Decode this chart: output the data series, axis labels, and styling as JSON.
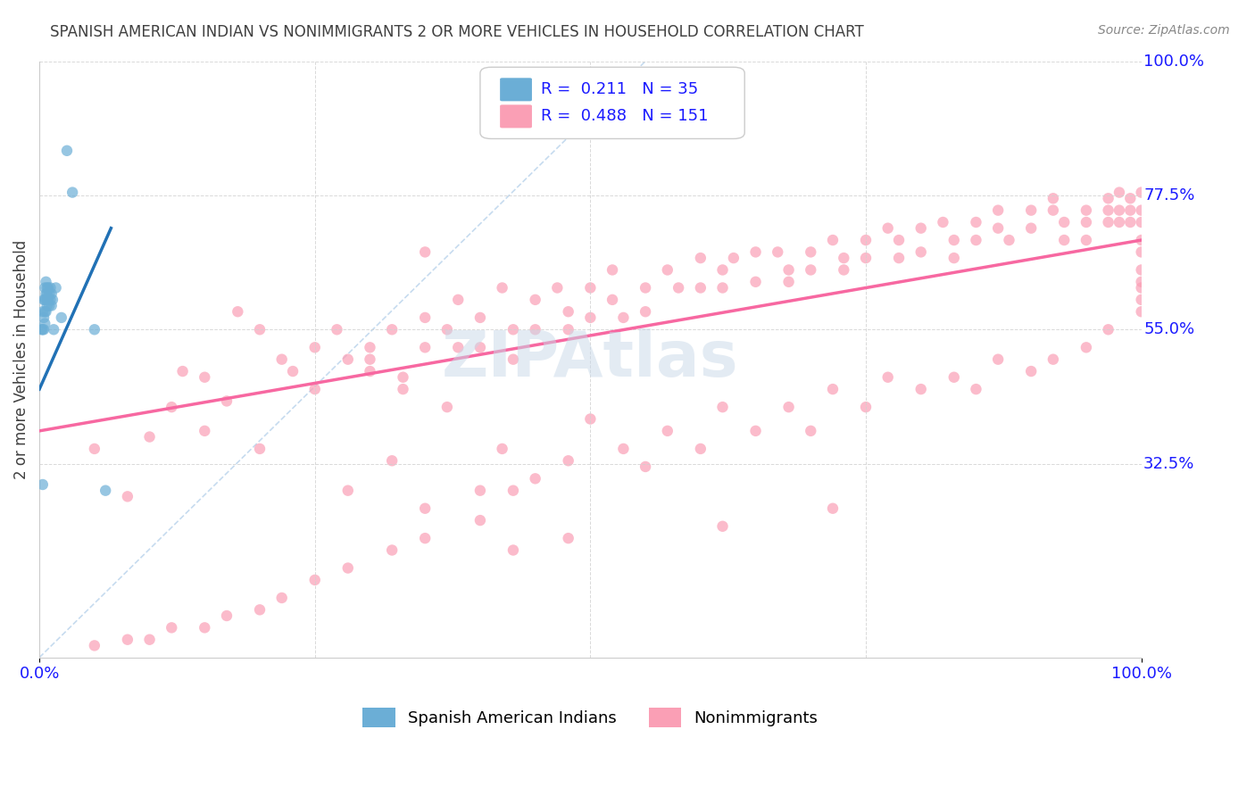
{
  "title": "SPANISH AMERICAN INDIAN VS NONIMMIGRANTS 2 OR MORE VEHICLES IN HOUSEHOLD CORRELATION CHART",
  "source": "Source: ZipAtlas.com",
  "ylabel": "2 or more Vehicles in Household",
  "xlabel": "",
  "xlim": [
    0.0,
    1.0
  ],
  "ylim": [
    0.0,
    1.0
  ],
  "xtick_labels": [
    "0.0%",
    "100.0%"
  ],
  "xtick_positions": [
    0.0,
    1.0
  ],
  "ytick_labels": [
    "100.0%",
    "77.5%",
    "55.0%",
    "32.5%"
  ],
  "ytick_positions": [
    1.0,
    0.775,
    0.55,
    0.325
  ],
  "R_blue": 0.211,
  "N_blue": 35,
  "R_pink": 0.488,
  "N_pink": 151,
  "legend_label_blue": "Spanish American Indians",
  "legend_label_pink": "Nonimmigrants",
  "color_blue": "#6baed6",
  "color_pink": "#fa9fb5",
  "color_blue_line": "#2171b5",
  "color_pink_line": "#f768a1",
  "color_diag": "#c6dbef",
  "scatter_blue_x": [
    0.003,
    0.003,
    0.004,
    0.004,
    0.004,
    0.005,
    0.005,
    0.005,
    0.005,
    0.006,
    0.006,
    0.006,
    0.006,
    0.007,
    0.007,
    0.007,
    0.007,
    0.008,
    0.008,
    0.009,
    0.009,
    0.01,
    0.01,
    0.011,
    0.011,
    0.012,
    0.013,
    0.015,
    0.02,
    0.025,
    0.03,
    0.05,
    0.06,
    0.003,
    0.002
  ],
  "scatter_blue_y": [
    0.55,
    0.58,
    0.6,
    0.57,
    0.55,
    0.62,
    0.6,
    0.58,
    0.56,
    0.63,
    0.61,
    0.6,
    0.58,
    0.62,
    0.61,
    0.6,
    0.59,
    0.62,
    0.6,
    0.61,
    0.59,
    0.62,
    0.6,
    0.61,
    0.59,
    0.6,
    0.55,
    0.62,
    0.57,
    0.85,
    0.78,
    0.55,
    0.28,
    0.29,
    0.55
  ],
  "scatter_pink_x": [
    0.05,
    0.08,
    0.1,
    0.12,
    0.13,
    0.15,
    0.17,
    0.18,
    0.2,
    0.22,
    0.23,
    0.25,
    0.25,
    0.27,
    0.28,
    0.3,
    0.3,
    0.32,
    0.33,
    0.35,
    0.35,
    0.37,
    0.38,
    0.38,
    0.4,
    0.4,
    0.42,
    0.43,
    0.43,
    0.45,
    0.45,
    0.47,
    0.48,
    0.48,
    0.5,
    0.5,
    0.52,
    0.52,
    0.53,
    0.55,
    0.55,
    0.57,
    0.58,
    0.6,
    0.6,
    0.62,
    0.62,
    0.63,
    0.65,
    0.65,
    0.67,
    0.68,
    0.68,
    0.7,
    0.7,
    0.72,
    0.73,
    0.73,
    0.75,
    0.75,
    0.77,
    0.78,
    0.78,
    0.8,
    0.8,
    0.82,
    0.83,
    0.83,
    0.85,
    0.85,
    0.87,
    0.87,
    0.88,
    0.9,
    0.9,
    0.92,
    0.92,
    0.93,
    0.93,
    0.95,
    0.95,
    0.95,
    0.97,
    0.97,
    0.97,
    0.98,
    0.98,
    0.98,
    0.99,
    0.99,
    0.99,
    1.0,
    1.0,
    1.0,
    1.0,
    1.0,
    1.0,
    1.0,
    1.0,
    1.0,
    0.15,
    0.2,
    0.28,
    0.32,
    0.35,
    0.37,
    0.4,
    0.42,
    0.45,
    0.5,
    0.53,
    0.55,
    0.57,
    0.6,
    0.62,
    0.65,
    0.68,
    0.7,
    0.72,
    0.75,
    0.77,
    0.8,
    0.83,
    0.85,
    0.87,
    0.9,
    0.92,
    0.95,
    0.97,
    1.0,
    0.72,
    0.62,
    0.48,
    0.43,
    0.48,
    0.43,
    0.4,
    0.35,
    0.32,
    0.28,
    0.25,
    0.22,
    0.2,
    0.17,
    0.15,
    0.12,
    0.1,
    0.08,
    0.05,
    0.3,
    0.33,
    0.35
  ],
  "scatter_pink_y": [
    0.35,
    0.27,
    0.37,
    0.42,
    0.48,
    0.47,
    0.43,
    0.58,
    0.55,
    0.5,
    0.48,
    0.52,
    0.45,
    0.55,
    0.5,
    0.48,
    0.52,
    0.55,
    0.47,
    0.57,
    0.52,
    0.55,
    0.6,
    0.52,
    0.57,
    0.52,
    0.62,
    0.55,
    0.5,
    0.6,
    0.55,
    0.62,
    0.58,
    0.55,
    0.62,
    0.57,
    0.65,
    0.6,
    0.57,
    0.62,
    0.58,
    0.65,
    0.62,
    0.67,
    0.62,
    0.65,
    0.62,
    0.67,
    0.68,
    0.63,
    0.68,
    0.65,
    0.63,
    0.68,
    0.65,
    0.7,
    0.67,
    0.65,
    0.7,
    0.67,
    0.72,
    0.7,
    0.67,
    0.72,
    0.68,
    0.73,
    0.7,
    0.67,
    0.73,
    0.7,
    0.75,
    0.72,
    0.7,
    0.75,
    0.72,
    0.77,
    0.75,
    0.73,
    0.7,
    0.75,
    0.73,
    0.7,
    0.77,
    0.75,
    0.73,
    0.78,
    0.75,
    0.73,
    0.77,
    0.75,
    0.73,
    0.78,
    0.75,
    0.73,
    0.7,
    0.68,
    0.65,
    0.63,
    0.62,
    0.6,
    0.38,
    0.35,
    0.28,
    0.33,
    0.25,
    0.42,
    0.28,
    0.35,
    0.3,
    0.4,
    0.35,
    0.32,
    0.38,
    0.35,
    0.42,
    0.38,
    0.42,
    0.38,
    0.45,
    0.42,
    0.47,
    0.45,
    0.47,
    0.45,
    0.5,
    0.48,
    0.5,
    0.52,
    0.55,
    0.58,
    0.25,
    0.22,
    0.2,
    0.18,
    0.33,
    0.28,
    0.23,
    0.2,
    0.18,
    0.15,
    0.13,
    0.1,
    0.08,
    0.07,
    0.05,
    0.05,
    0.03,
    0.03,
    0.02,
    0.5,
    0.45,
    0.68
  ],
  "blue_line_x": [
    0.0,
    0.065
  ],
  "blue_line_y": [
    0.45,
    0.72
  ],
  "pink_line_x": [
    0.0,
    1.0
  ],
  "pink_line_y": [
    0.38,
    0.7
  ],
  "diag_line_x": [
    0.0,
    0.55
  ],
  "diag_line_y": [
    0.0,
    1.0
  ],
  "background_color": "#ffffff",
  "grid_color": "#d0d0d0",
  "title_color": "#404040",
  "axis_label_color": "#1a1aff",
  "tick_label_color": "#1a1aff",
  "watermark_text": "ZIPAtlas",
  "watermark_color": "#c8d8e8",
  "watermark_alpha": 0.5
}
